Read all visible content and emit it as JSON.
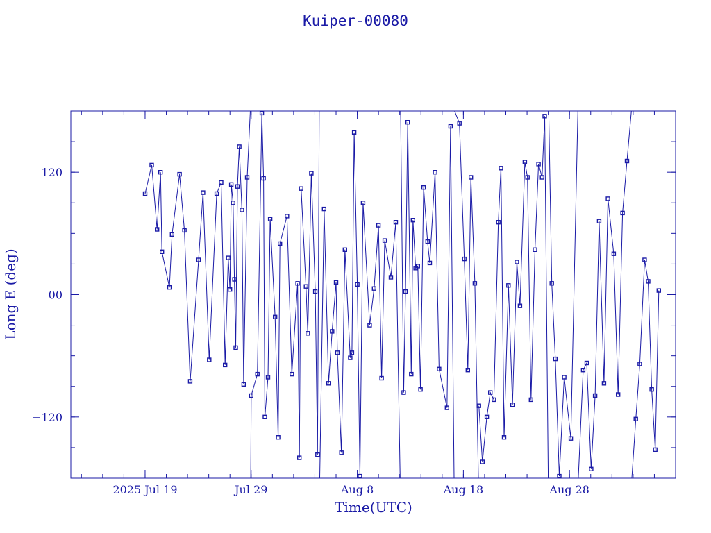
{
  "chart_data": {
    "type": "line",
    "title": "Kuiper-00080",
    "xlabel": "Time(UTC)",
    "ylabel": "Long E (deg)",
    "xlim": [
      "2025-07-12",
      "2025-09-07"
    ],
    "ylim": [
      -180,
      180
    ],
    "x_ticks": [
      {
        "date": "2025-07-19",
        "label": "2025 Jul 19"
      },
      {
        "date": "2025-07-29",
        "label": "Jul 29"
      },
      {
        "date": "2025-08-08",
        "label": "Aug  8"
      },
      {
        "date": "2025-08-18",
        "label": "Aug 18"
      },
      {
        "date": "2025-08-28",
        "label": "Aug 28"
      }
    ],
    "y_ticks": [
      {
        "value": 120,
        "label": "120"
      },
      {
        "value": 0,
        "label": "00"
      },
      {
        "value": -120,
        "label": "−120"
      }
    ],
    "x_minor_step_days": 2,
    "y_minor_step": 30,
    "grid": false,
    "marker": "square",
    "wrap_longitude": true,
    "series": [
      {
        "points": [
          [
            "2025-07-19 00:00",
            99
          ],
          [
            "2025-07-19 15:00",
            127
          ],
          [
            "2025-07-20 03:00",
            64
          ],
          [
            "2025-07-20 11:00",
            120
          ],
          [
            "2025-07-20 14:00",
            42
          ],
          [
            "2025-07-21 07:00",
            7
          ],
          [
            "2025-07-21 13:00",
            59
          ],
          [
            "2025-07-22 06:00",
            118
          ],
          [
            "2025-07-22 17:00",
            63
          ],
          [
            "2025-07-23 06:00",
            -85
          ],
          [
            "2025-07-24 01:00",
            34
          ],
          [
            "2025-07-24 11:00",
            100
          ],
          [
            "2025-07-25 01:00",
            -64
          ],
          [
            "2025-07-25 18:00",
            99
          ],
          [
            "2025-07-26 04:00",
            110
          ],
          [
            "2025-07-26 13:00",
            -69
          ],
          [
            "2025-07-26 20:00",
            36
          ],
          [
            "2025-07-27 00:00",
            5
          ],
          [
            "2025-07-27 03:00",
            108
          ],
          [
            "2025-07-27 07:00",
            90
          ],
          [
            "2025-07-27 10:00",
            15
          ],
          [
            "2025-07-27 13:00",
            -52
          ],
          [
            "2025-07-27 17:00",
            106
          ],
          [
            "2025-07-27 21:00",
            145
          ],
          [
            "2025-07-28 03:00",
            83
          ],
          [
            "2025-07-28 07:00",
            -88
          ],
          [
            "2025-07-28 15:00",
            115
          ],
          [
            "2025-07-28 22:00",
            180
          ]
        ]
      },
      {
        "points": [
          [
            "2025-07-28 23:00",
            -180
          ],
          [
            "2025-07-29 00:00",
            -99
          ],
          [
            "2025-07-29 14:00",
            -78
          ],
          [
            "2025-07-30 00:00",
            178
          ],
          [
            "2025-07-30 04:00",
            114
          ],
          [
            "2025-07-30 07:00",
            -120
          ],
          [
            "2025-07-30 14:00",
            -81
          ],
          [
            "2025-07-30 19:00",
            74
          ],
          [
            "2025-07-31 06:00",
            -22
          ],
          [
            "2025-07-31 13:00",
            -140
          ],
          [
            "2025-07-31 17:00",
            50
          ],
          [
            "2025-08-01 09:00",
            77
          ],
          [
            "2025-08-01 20:00",
            -78
          ],
          [
            "2025-08-02 09:00",
            11
          ],
          [
            "2025-08-02 13:00",
            -160
          ],
          [
            "2025-08-02 17:00",
            104
          ],
          [
            "2025-08-03 04:00",
            8
          ],
          [
            "2025-08-03 08:00",
            -38
          ],
          [
            "2025-08-03 16:00",
            119
          ],
          [
            "2025-08-04 01:00",
            3
          ],
          [
            "2025-08-04 06:00",
            -157
          ],
          [
            "2025-08-04 10:00",
            180
          ]
        ]
      },
      {
        "points": [
          [
            "2025-08-04 11:00",
            -180
          ],
          [
            "2025-08-04 21:00",
            84
          ],
          [
            "2025-08-05 07:00",
            -87
          ],
          [
            "2025-08-05 15:00",
            -36
          ],
          [
            "2025-08-06 00:00",
            12
          ],
          [
            "2025-08-06 03:00",
            -57
          ],
          [
            "2025-08-06 12:00",
            -155
          ],
          [
            "2025-08-06 20:00",
            44
          ],
          [
            "2025-08-07 08:00",
            -62
          ],
          [
            "2025-08-07 12:00",
            -57
          ],
          [
            "2025-08-07 17:00",
            159
          ],
          [
            "2025-08-08 00:00",
            10
          ],
          [
            "2025-08-08 06:00",
            -178
          ],
          [
            "2025-08-08 13:00",
            90
          ],
          [
            "2025-08-09 04:00",
            -30
          ],
          [
            "2025-08-09 14:00",
            6
          ],
          [
            "2025-08-10 00:00",
            68
          ],
          [
            "2025-08-10 07:00",
            -82
          ],
          [
            "2025-08-10 14:00",
            53
          ],
          [
            "2025-08-11 04:00",
            17
          ],
          [
            "2025-08-11 15:00",
            71
          ],
          [
            "2025-08-12 01:00",
            -180
          ]
        ]
      },
      {
        "points": [
          [
            "2025-08-12 02:00",
            180
          ],
          [
            "2025-08-12 09:00",
            -96
          ],
          [
            "2025-08-12 13:00",
            3
          ],
          [
            "2025-08-12 18:00",
            169
          ],
          [
            "2025-08-13 02:00",
            -78
          ],
          [
            "2025-08-13 06:00",
            73
          ],
          [
            "2025-08-13 12:00",
            26
          ],
          [
            "2025-08-13 17:00",
            28
          ],
          [
            "2025-08-13 23:00",
            -93
          ],
          [
            "2025-08-14 06:00",
            105
          ],
          [
            "2025-08-14 15:00",
            52
          ],
          [
            "2025-08-14 20:00",
            31
          ],
          [
            "2025-08-15 08:00",
            120
          ],
          [
            "2025-08-15 17:00",
            -73
          ],
          [
            "2025-08-16 11:00",
            -111
          ],
          [
            "2025-08-16 19:00",
            165
          ],
          [
            "2025-08-17 03:00",
            -180
          ]
        ]
      },
      {
        "points": [
          [
            "2025-08-17 04:00",
            180
          ],
          [
            "2025-08-17 15:00",
            168
          ],
          [
            "2025-08-18 02:00",
            35
          ],
          [
            "2025-08-18 10:00",
            -74
          ],
          [
            "2025-08-18 17:00",
            115
          ],
          [
            "2025-08-19 02:00",
            11
          ],
          [
            "2025-08-19 10:00",
            -180
          ]
        ]
      },
      {
        "points": [
          [
            "2025-08-19 11:00",
            -109
          ],
          [
            "2025-08-19 19:00",
            -164
          ],
          [
            "2025-08-20 05:00",
            -120
          ],
          [
            "2025-08-20 13:00",
            -96
          ],
          [
            "2025-08-20 21:00",
            -103
          ],
          [
            "2025-08-21 07:00",
            71
          ],
          [
            "2025-08-21 13:00",
            124
          ],
          [
            "2025-08-21 20:00",
            -140
          ],
          [
            "2025-08-22 06:00",
            9
          ],
          [
            "2025-08-22 15:00",
            -108
          ],
          [
            "2025-08-23 01:00",
            32
          ],
          [
            "2025-08-23 08:00",
            -11
          ],
          [
            "2025-08-23 19:00",
            130
          ],
          [
            "2025-08-24 01:00",
            115
          ],
          [
            "2025-08-24 09:00",
            -103
          ],
          [
            "2025-08-24 18:00",
            44
          ],
          [
            "2025-08-25 02:00",
            128
          ],
          [
            "2025-08-25 10:00",
            115
          ],
          [
            "2025-08-25 16:00",
            175
          ],
          [
            "2025-08-26 00:00",
            -180
          ]
        ]
      },
      {
        "points": [
          [
            "2025-08-26 01:00",
            180
          ],
          [
            "2025-08-26 08:00",
            11
          ],
          [
            "2025-08-26 16:00",
            -63
          ],
          [
            "2025-08-27 01:00",
            -178
          ],
          [
            "2025-08-27 12:00",
            -81
          ],
          [
            "2025-08-28 03:00",
            -141
          ],
          [
            "2025-08-28 19:00",
            180
          ]
        ]
      },
      {
        "points": [
          [
            "2025-08-28 20:00",
            -180
          ],
          [
            "2025-08-29 07:00",
            -74
          ],
          [
            "2025-08-29 15:00",
            -67
          ],
          [
            "2025-08-30 01:00",
            -171
          ],
          [
            "2025-08-30 10:00",
            -99
          ],
          [
            "2025-08-30 19:00",
            72
          ],
          [
            "2025-08-31 06:00",
            -87
          ],
          [
            "2025-08-31 15:00",
            94
          ],
          [
            "2025-09-01 04:00",
            40
          ],
          [
            "2025-09-01 14:00",
            -98
          ],
          [
            "2025-09-02 00:00",
            80
          ],
          [
            "2025-09-02 10:00",
            131
          ],
          [
            "2025-09-02 20:00",
            180
          ]
        ]
      },
      {
        "points": [
          [
            "2025-09-02 21:00",
            -180
          ],
          [
            "2025-09-03 06:00",
            -122
          ],
          [
            "2025-09-03 15:00",
            -68
          ],
          [
            "2025-09-04 02:00",
            34
          ],
          [
            "2025-09-04 10:00",
            13
          ],
          [
            "2025-09-04 18:00",
            -93
          ],
          [
            "2025-09-05 02:00",
            -152
          ],
          [
            "2025-09-05 10:00",
            4
          ]
        ]
      }
    ]
  }
}
